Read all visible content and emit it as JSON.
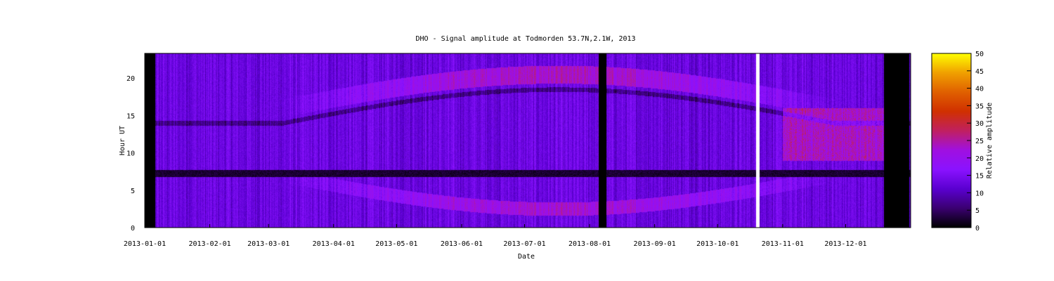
{
  "chart_data": {
    "type": "heatmap",
    "title": "DHO - Signal amplitude at Todmorden 53.7N,2.1W, 2013",
    "xlabel": "Date",
    "ylabel": "Hour UT",
    "colorbar_label": "Relative amplitude",
    "x_range": [
      "2013-01-01",
      "2013-12-31"
    ],
    "ylim": [
      0,
      23.3
    ],
    "y_ticks": [
      0,
      5,
      10,
      15,
      20
    ],
    "x_ticks": [
      "2013-01-01",
      "2013-02-01",
      "2013-03-01",
      "2013-04-01",
      "2013-05-01",
      "2013-06-01",
      "2013-07-01",
      "2013-08-01",
      "2013-09-01",
      "2013-10-01",
      "2013-11-01",
      "2013-12-01"
    ],
    "colorbar_ticks": [
      0,
      5,
      10,
      15,
      20,
      25,
      30,
      35,
      40,
      45,
      50
    ],
    "colorbar_range": [
      0,
      50
    ],
    "colormap": [
      "#000000",
      "#3a0070",
      "#5a00d0",
      "#8a12ff",
      "#a010e0",
      "#c02060",
      "#d03000",
      "#e06000",
      "#f0a000",
      "#ffff00"
    ],
    "grid": false,
    "features": [
      {
        "name": "transmitter off-air band",
        "hour": 7.3,
        "value": 0
      },
      {
        "name": "evening enhancement",
        "hour_range": [
          19,
          22
        ],
        "value": 25
      },
      {
        "name": "morning enhancement",
        "hour_range": [
          1,
          3.5
        ],
        "value": 24
      },
      {
        "name": "winter daytime enhancement",
        "date_range": [
          "2013-11-01",
          "2013-12-20"
        ],
        "hour_range": [
          9,
          16
        ],
        "value": 28
      },
      {
        "name": "data gap",
        "date_range": [
          "2013-01-01",
          "2013-01-06"
        ],
        "value": 0
      },
      {
        "name": "data gap",
        "date_range": [
          "2013-08-05",
          "2013-08-09"
        ],
        "value": 0
      },
      {
        "name": "data gap",
        "date_range": [
          "2013-12-19",
          "2013-12-31"
        ],
        "value": 0
      },
      {
        "name": "missing data",
        "date_range": [
          "2013-10-19",
          "2013-10-21"
        ],
        "value": null
      }
    ]
  }
}
